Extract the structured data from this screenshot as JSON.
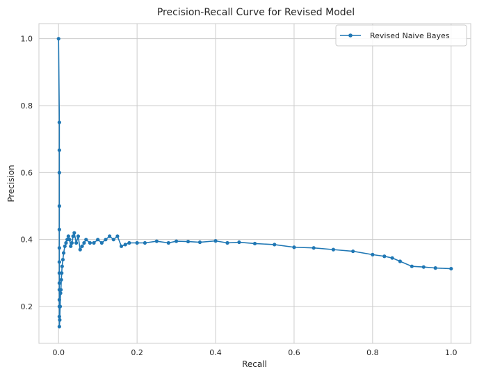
{
  "chart_data": {
    "type": "line",
    "title": "Precision-Recall Curve for Revised Model",
    "xlabel": "Recall",
    "ylabel": "Precision",
    "xlim": [
      -0.05,
      1.05
    ],
    "ylim": [
      0.09,
      1.045
    ],
    "xticks": [
      0.0,
      0.2,
      0.4,
      0.6,
      0.8,
      1.0
    ],
    "xtick_labels": [
      "0.0",
      "0.2",
      "0.4",
      "0.6",
      "0.8",
      "1.0"
    ],
    "yticks": [
      0.2,
      0.4,
      0.6,
      0.8,
      1.0
    ],
    "ytick_labels": [
      "0.2",
      "0.4",
      "0.6",
      "0.8",
      "1.0"
    ],
    "grid": true,
    "legend_position": "upper right",
    "series": [
      {
        "name": "Revised Naive Bayes",
        "color": "#1f77b4",
        "marker": "circle",
        "x": [
          0.0,
          0.002,
          0.002,
          0.002,
          0.002,
          0.002,
          0.002,
          0.002,
          0.002,
          0.002,
          0.002,
          0.002,
          0.002,
          0.002,
          0.002,
          0.003,
          0.004,
          0.005,
          0.006,
          0.007,
          0.008,
          0.009,
          0.011,
          0.013,
          0.016,
          0.019,
          0.022,
          0.025,
          0.028,
          0.031,
          0.034,
          0.037,
          0.04,
          0.045,
          0.05,
          0.055,
          0.06,
          0.065,
          0.07,
          0.08,
          0.09,
          0.1,
          0.11,
          0.12,
          0.13,
          0.14,
          0.15,
          0.16,
          0.17,
          0.18,
          0.2,
          0.22,
          0.25,
          0.28,
          0.3,
          0.33,
          0.36,
          0.4,
          0.43,
          0.46,
          0.5,
          0.55,
          0.6,
          0.65,
          0.7,
          0.75,
          0.8,
          0.83,
          0.85,
          0.87,
          0.9,
          0.93,
          0.96,
          1.0
        ],
        "y": [
          1.0,
          0.75,
          0.667,
          0.6,
          0.5,
          0.43,
          0.375,
          0.333,
          0.3,
          0.27,
          0.25,
          0.22,
          0.2,
          0.17,
          0.14,
          0.16,
          0.2,
          0.24,
          0.25,
          0.28,
          0.3,
          0.32,
          0.34,
          0.36,
          0.38,
          0.39,
          0.4,
          0.41,
          0.4,
          0.38,
          0.39,
          0.41,
          0.42,
          0.39,
          0.41,
          0.37,
          0.38,
          0.39,
          0.4,
          0.39,
          0.39,
          0.4,
          0.39,
          0.4,
          0.41,
          0.4,
          0.41,
          0.38,
          0.385,
          0.39,
          0.39,
          0.39,
          0.395,
          0.39,
          0.395,
          0.394,
          0.392,
          0.396,
          0.39,
          0.392,
          0.388,
          0.385,
          0.377,
          0.375,
          0.37,
          0.365,
          0.355,
          0.35,
          0.345,
          0.335,
          0.32,
          0.318,
          0.315,
          0.313
        ]
      }
    ]
  }
}
